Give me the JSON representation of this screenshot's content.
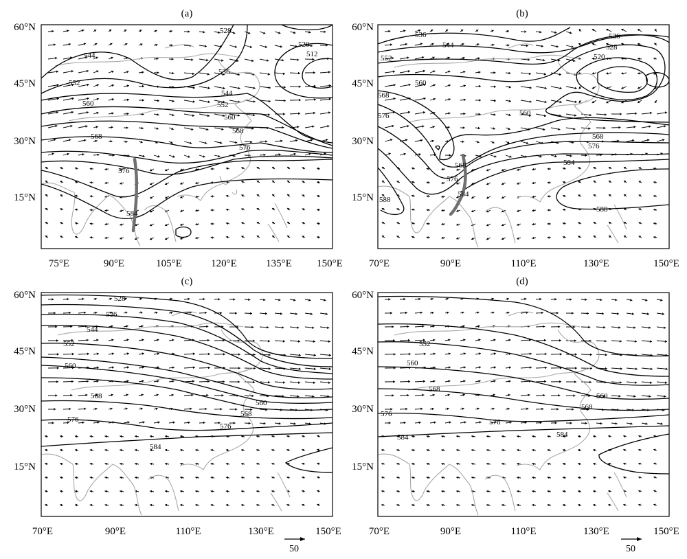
{
  "figure": {
    "panels": [
      {
        "label": "(a)",
        "y_ticks": [
          "60°N",
          "45°N",
          "30°N",
          "15°N"
        ],
        "x_ticks": [
          "75°E",
          "90°E",
          "105°E",
          "120°E",
          "135°E",
          "150°E"
        ],
        "x_tick_lons": [
          75,
          90,
          105,
          120,
          135,
          150
        ],
        "contour_labels": [
          "528",
          "520",
          "512",
          "544",
          "536",
          "552",
          "544",
          "552",
          "560",
          "560",
          "568",
          "568",
          "576",
          "576",
          "584"
        ],
        "has_trough_axis": true
      },
      {
        "label": "(b)",
        "y_ticks": [
          "60°N",
          "45°N",
          "30°N",
          "15°N"
        ],
        "x_ticks": [
          "70°E",
          "90°E",
          "110°E",
          "130°E",
          "150°E"
        ],
        "x_tick_lons": [
          70,
          90,
          110,
          130,
          150
        ],
        "contour_labels": [
          "536",
          "544",
          "536",
          "528",
          "520",
          "552",
          "560",
          "568",
          "576",
          "560",
          "568",
          "576",
          "568",
          "576",
          "584",
          "584",
          "588",
          "588"
        ],
        "has_trough_axis": true
      },
      {
        "label": "(c)",
        "y_ticks": [
          "60°N",
          "45°N",
          "30°N",
          "15°N"
        ],
        "x_ticks": [
          "70°E",
          "90°E",
          "110°E",
          "130°E",
          "150°E"
        ],
        "x_tick_lons": [
          70,
          90,
          110,
          130,
          150
        ],
        "contour_labels": [
          "528",
          "536",
          "544",
          "552",
          "560",
          "568",
          "560",
          "568",
          "576",
          "576",
          "584"
        ],
        "has_trough_axis": false
      },
      {
        "label": "(d)",
        "y_ticks": [
          "60°N",
          "45°N",
          "30°N",
          "15°N"
        ],
        "x_ticks": [
          "70°E",
          "90°E",
          "110°E",
          "130°E",
          "150°E"
        ],
        "x_tick_lons": [
          70,
          90,
          110,
          130,
          150
        ],
        "contour_labels": [
          "552",
          "560",
          "568",
          "560",
          "568",
          "576",
          "576",
          "584",
          "584"
        ],
        "has_trough_axis": false
      }
    ],
    "reference_vector": "50",
    "colors": {
      "contour": "#000000",
      "coastline": "#a8a8a8",
      "trough": "#707070",
      "vector": "#000000"
    }
  }
}
